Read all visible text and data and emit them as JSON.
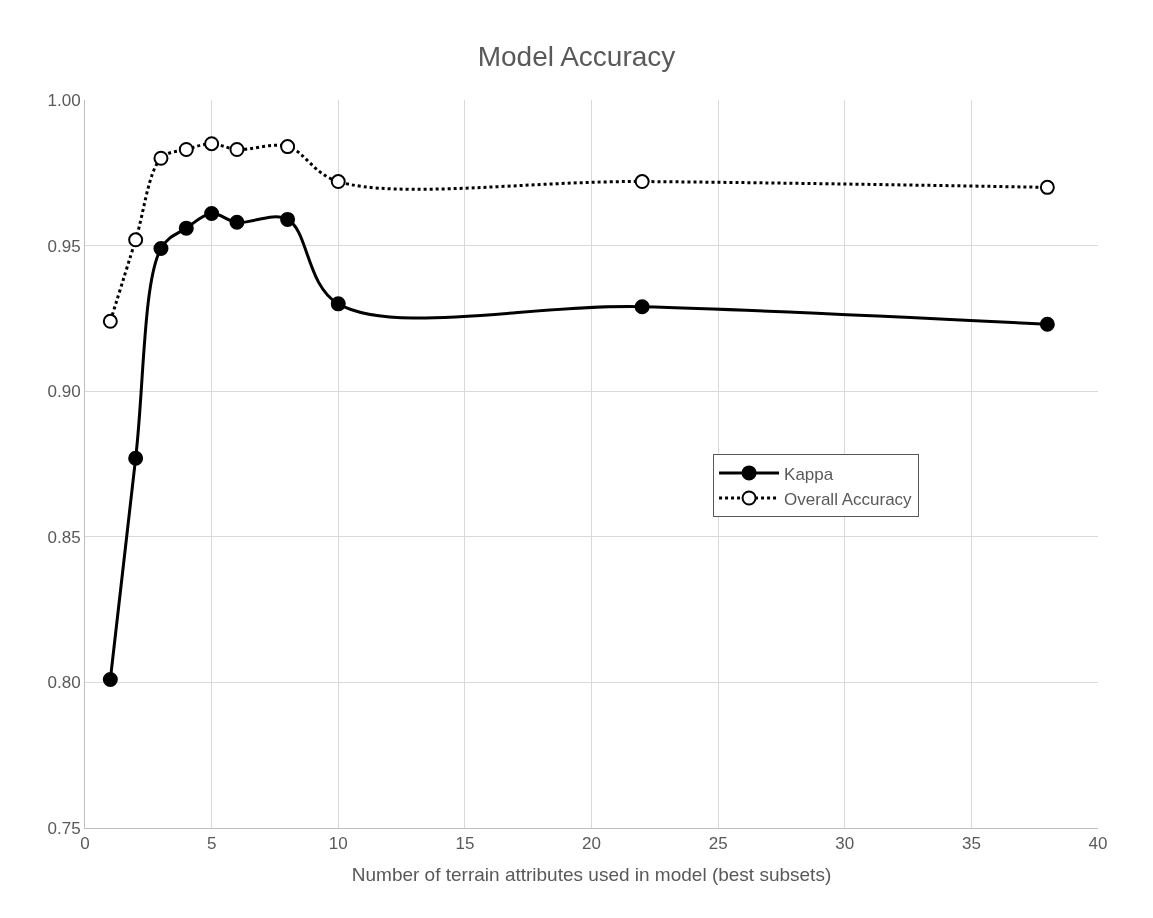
{
  "chart_data": {
    "type": "line",
    "title": "Model Accuracy",
    "xlabel": "Number of terrain attributes used in model (best subsets)",
    "x": [
      1,
      2,
      3,
      4,
      5,
      6,
      8,
      10,
      22,
      38
    ],
    "series": [
      {
        "name": "Kappa",
        "color": "#000000",
        "values": [
          0.801,
          0.877,
          0.949,
          0.956,
          0.961,
          0.958,
          0.959,
          0.93,
          0.929,
          0.923
        ],
        "marker": "circle",
        "line_style": "solid"
      },
      {
        "name": "Overall Accuracy",
        "color": "#000000",
        "values": [
          0.924,
          0.952,
          0.98,
          0.983,
          0.985,
          0.983,
          0.984,
          0.972,
          0.972,
          0.97
        ],
        "marker": "circle",
        "line_style": "dotted"
      }
    ],
    "xlim": [
      0,
      40
    ],
    "xticks": [
      0,
      5,
      10,
      15,
      20,
      25,
      30,
      35,
      40
    ],
    "ylim": [
      0.75,
      1.0
    ],
    "yticks": [
      {
        "value": 0.75,
        "label": "0.75"
      },
      {
        "value": 0.8,
        "label": "0.80"
      },
      {
        "value": 0.85,
        "label": "0.85"
      },
      {
        "value": 0.9,
        "label": "0.90"
      },
      {
        "value": 0.95,
        "label": "0.95"
      },
      {
        "value": 1.0,
        "label": "1.00"
      }
    ],
    "grid": true,
    "legend": "center right"
  }
}
